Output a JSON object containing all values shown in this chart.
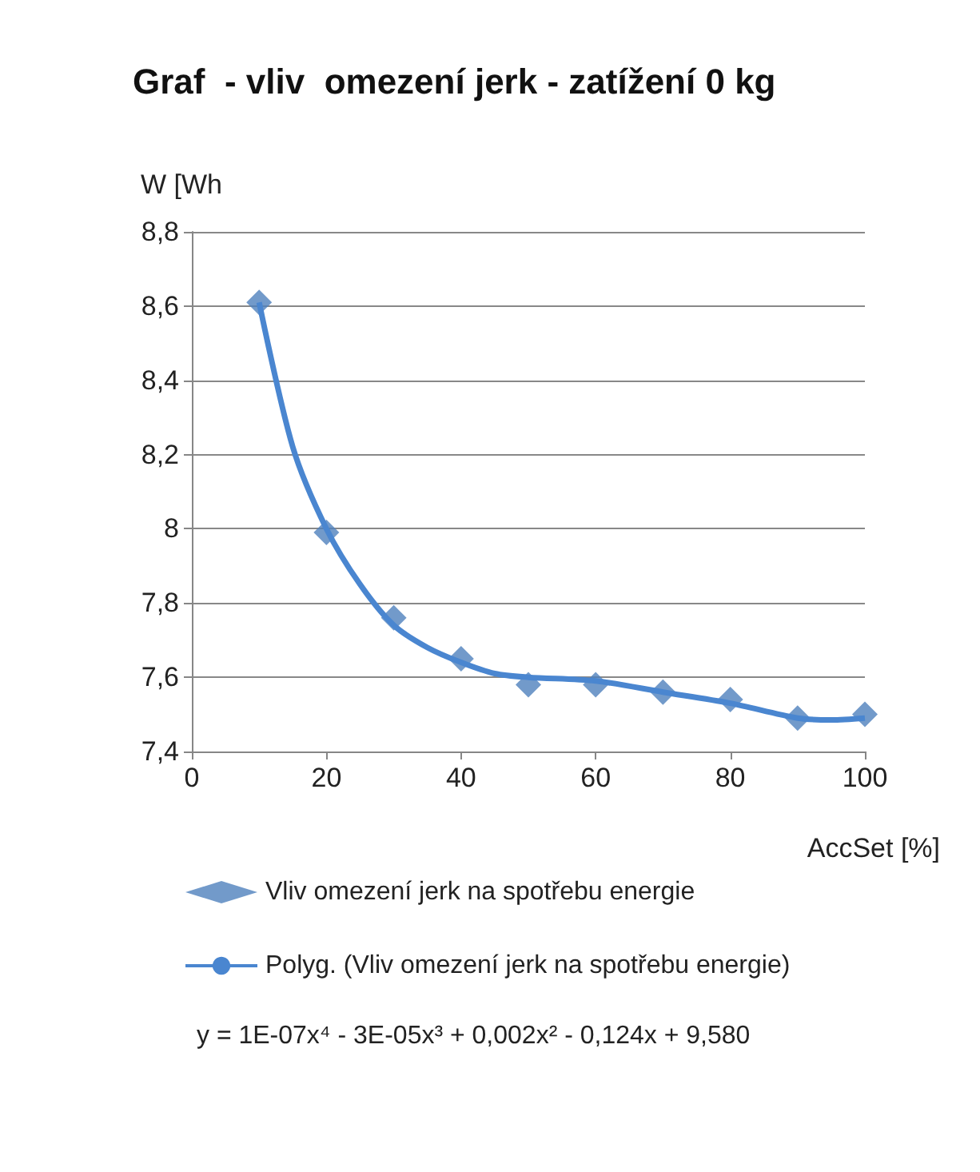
{
  "chart_data": {
    "type": "scatter",
    "title": "Graf  - vliv  omezení jerk - zatížení 0 kg",
    "xlabel": "AccSet [%]",
    "ylabel": "W [Wh",
    "x": [
      10,
      20,
      30,
      40,
      50,
      60,
      70,
      80,
      90,
      100
    ],
    "series": [
      {
        "name": "Vliv omezení jerk na spotřebu energie",
        "color": "#4f81bd",
        "marker": "diamond",
        "values": [
          8.61,
          7.99,
          7.76,
          7.65,
          7.58,
          7.58,
          7.56,
          7.54,
          7.49,
          7.5
        ]
      },
      {
        "name": "Polyg. (Vliv omezení jerk na spotřebu energie)",
        "type": "line",
        "color": "#4a86d0",
        "marker": "none",
        "line_style": "solid",
        "x": [
          10,
          15,
          20,
          25,
          30,
          35,
          40,
          45,
          50,
          60,
          70,
          80,
          90,
          95,
          100
        ],
        "values": [
          8.61,
          8.22,
          8.0,
          7.85,
          7.74,
          7.68,
          7.64,
          7.61,
          7.6,
          7.59,
          7.56,
          7.53,
          7.49,
          7.485,
          7.49
        ]
      }
    ],
    "xlim": [
      0,
      100
    ],
    "xticks": [
      0,
      20,
      40,
      60,
      80,
      100
    ],
    "ylim": [
      7.4,
      8.8
    ],
    "yticks": [
      {
        "value": 7.4,
        "label": "7,4"
      },
      {
        "value": 7.6,
        "label": "7,6"
      },
      {
        "value": 7.8,
        "label": "7,8"
      },
      8,
      {
        "value": 8.2,
        "label": "8,2"
      },
      {
        "value": 8.4,
        "label": "8,4"
      },
      {
        "value": 8.6,
        "label": "8,6"
      },
      {
        "value": 8.8,
        "label": "8,8"
      }
    ],
    "grid": "y",
    "legend": "bottom",
    "annotations": [
      "y = 1E-07x⁴ - 3E-05x³ + 0,002x² - 0,124x + 9,580"
    ]
  }
}
